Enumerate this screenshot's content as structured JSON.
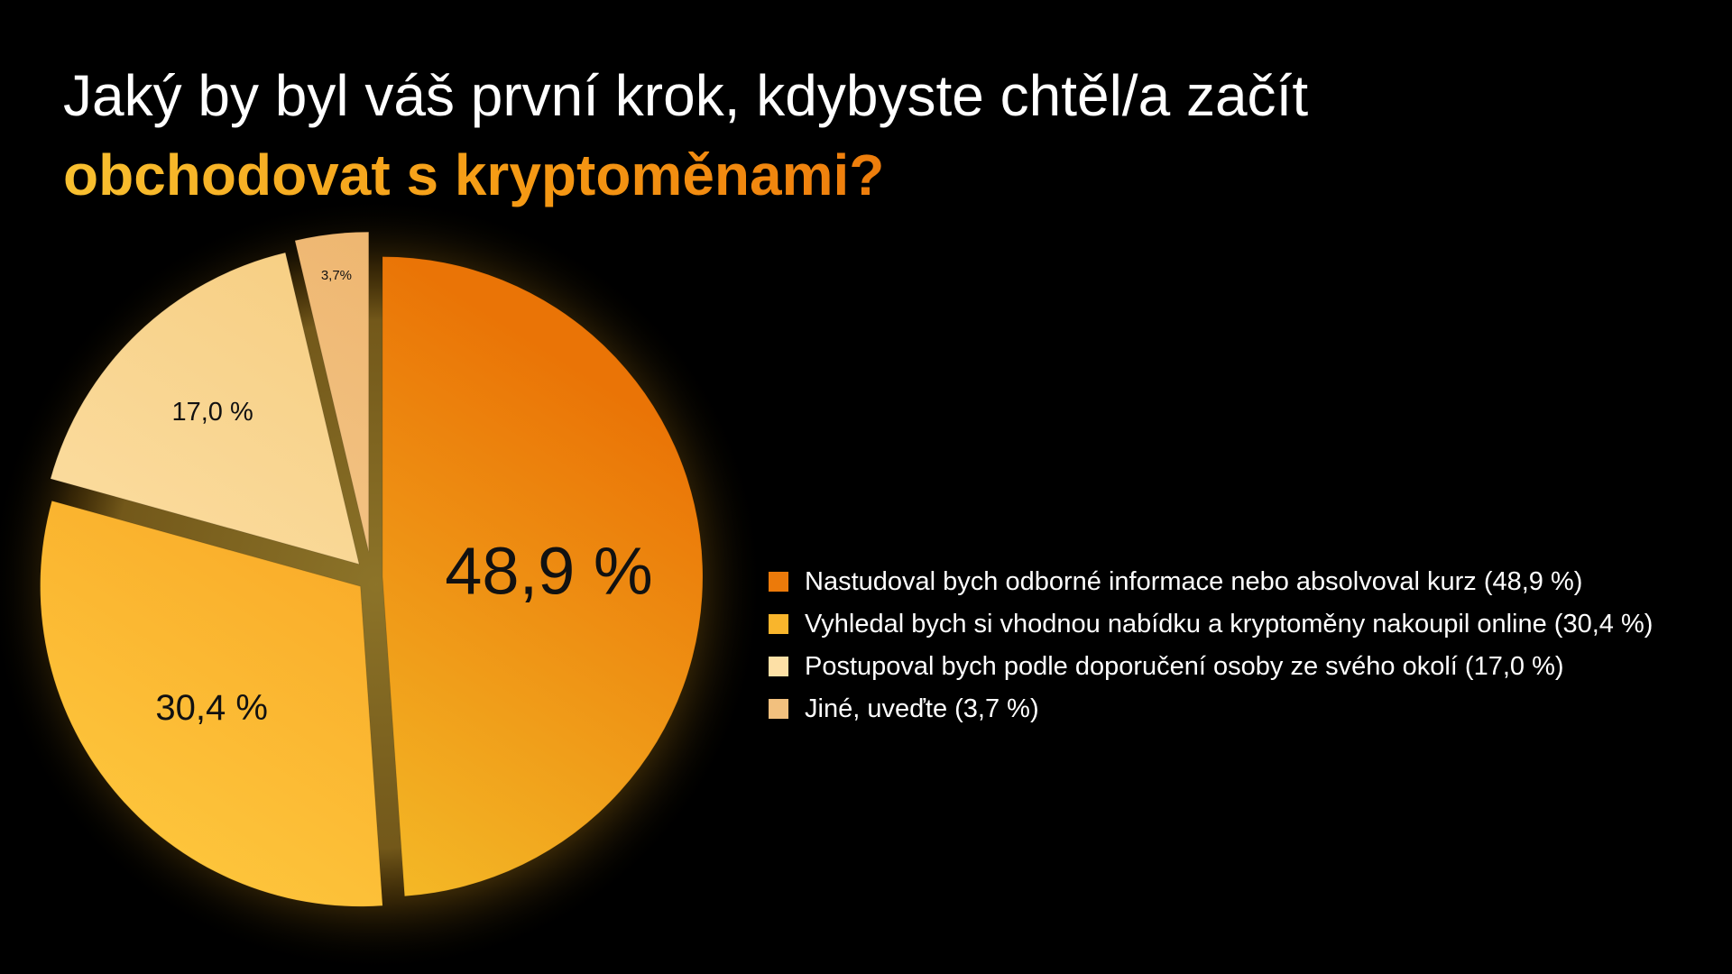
{
  "title": {
    "line1": "Jaký by byl váš první krok, kdybyste chtěl/a začít",
    "line2": "obchodovat s kryptoměnami?"
  },
  "colors": {
    "background": "#000000",
    "accent_title": "#f5a21a"
  },
  "chart_data": {
    "type": "pie",
    "title": "Jaký by byl váš první krok, kdybyste chtěl/a začít obchodovat s kryptoměnami?",
    "slices": [
      {
        "legend": "Nastudoval bych odborné informace nebo absolvoval kurz (48,9 %)",
        "value": 48.9,
        "data_label": "48,9 %",
        "color_start": "#f5c02a",
        "color_end": "#ea7406"
      },
      {
        "legend": "Vyhledal bych si vhodnou nabídku a kryptoměny nakoupil online (30,4 %)",
        "value": 30.4,
        "data_label": "30,4 %",
        "color_start": "#fdc43b",
        "color_end": "#f69a1c"
      },
      {
        "legend": "Postupoval bych podle doporučení osoby ze svého okolí (17,0 %)",
        "value": 17.0,
        "data_label": "17,0 %",
        "color_start": "#fde3ad",
        "color_end": "#f6cd80"
      },
      {
        "legend": "Jiné, uveďte (3,7 %)",
        "value": 3.7,
        "data_label": "3,7%",
        "color_start": "#f7cf96",
        "color_end": "#eeb670"
      }
    ],
    "legend_position": "right"
  }
}
